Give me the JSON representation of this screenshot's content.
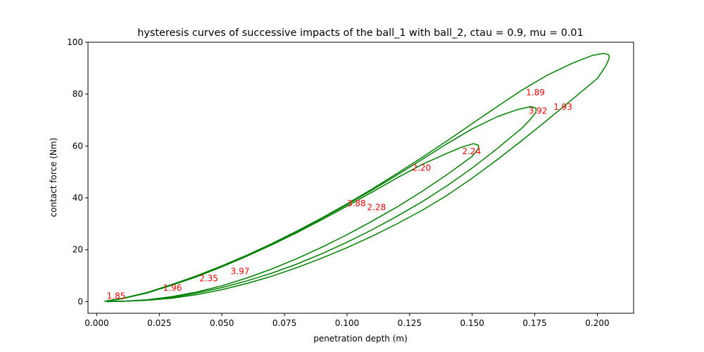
{
  "chart_data": {
    "type": "line",
    "title": "hysteresis curves of successive impacts of the ball_1 with ball_2, ctau = 0.9, mu = 0.01",
    "xlabel": "penetration depth (m)",
    "ylabel": "contact force (Nm)",
    "xlim": [
      -0.0035,
      0.2145
    ],
    "ylim": [
      -4.5,
      100
    ],
    "xticks": [
      {
        "value": 0.0,
        "label": "0.000"
      },
      {
        "value": 0.025,
        "label": "0.025"
      },
      {
        "value": 0.05,
        "label": "0.050"
      },
      {
        "value": 0.075,
        "label": "0.075"
      },
      {
        "value": 0.1,
        "label": "0.100"
      },
      {
        "value": 0.125,
        "label": "0.125"
      },
      {
        "value": 0.15,
        "label": "0.150"
      },
      {
        "value": 0.175,
        "label": "0.175"
      },
      {
        "value": 0.2,
        "label": "0.200"
      }
    ],
    "yticks": [
      {
        "value": 0,
        "label": "0"
      },
      {
        "value": 20,
        "label": "20"
      },
      {
        "value": 40,
        "label": "40"
      },
      {
        "value": 60,
        "label": "60"
      },
      {
        "value": 80,
        "label": "80"
      },
      {
        "value": 100,
        "label": "100"
      }
    ],
    "grid": false,
    "line_color": "#008000",
    "annotation_color": "#ff0000",
    "series": [
      {
        "loading": [
          [
            0.003,
            0.1
          ],
          [
            0.01,
            1.2
          ],
          [
            0.02,
            3.5
          ],
          [
            0.03,
            6.6
          ],
          [
            0.04,
            10.0
          ],
          [
            0.05,
            13.8
          ],
          [
            0.06,
            17.9
          ],
          [
            0.07,
            22.4
          ],
          [
            0.08,
            27.2
          ],
          [
            0.09,
            32.3
          ],
          [
            0.1,
            37.7
          ],
          [
            0.11,
            43.4
          ],
          [
            0.12,
            49.4
          ],
          [
            0.13,
            55.6
          ],
          [
            0.14,
            62.0
          ],
          [
            0.15,
            68.6
          ],
          [
            0.16,
            75.2
          ],
          [
            0.17,
            81.6
          ],
          [
            0.18,
            87.3
          ],
          [
            0.19,
            91.9
          ],
          [
            0.198,
            94.9
          ],
          [
            0.2025,
            95.7
          ],
          [
            0.2045,
            95.2
          ]
        ],
        "unloading": [
          [
            0.2048,
            94.0
          ],
          [
            0.2035,
            91.0
          ],
          [
            0.2,
            86.0
          ],
          [
            0.19,
            78.0
          ],
          [
            0.18,
            70.0
          ],
          [
            0.17,
            62.2
          ],
          [
            0.16,
            54.7
          ],
          [
            0.15,
            47.6
          ],
          [
            0.14,
            41.0
          ],
          [
            0.13,
            35.2
          ],
          [
            0.12,
            30.0
          ],
          [
            0.11,
            25.2
          ],
          [
            0.1,
            20.8
          ],
          [
            0.09,
            16.8
          ],
          [
            0.08,
            13.1
          ],
          [
            0.07,
            9.8
          ],
          [
            0.06,
            7.0
          ],
          [
            0.05,
            4.6
          ],
          [
            0.04,
            2.7
          ],
          [
            0.03,
            1.3
          ],
          [
            0.02,
            0.5
          ],
          [
            0.01,
            0.1
          ],
          [
            0.004,
            0.0
          ]
        ]
      },
      {
        "loading": [
          [
            0.004,
            0.1
          ],
          [
            0.01,
            1.1
          ],
          [
            0.02,
            3.4
          ],
          [
            0.03,
            6.4
          ],
          [
            0.04,
            9.8
          ],
          [
            0.05,
            13.6
          ],
          [
            0.06,
            17.7
          ],
          [
            0.07,
            22.2
          ],
          [
            0.08,
            27.0
          ],
          [
            0.09,
            32.1
          ],
          [
            0.1,
            37.4
          ],
          [
            0.11,
            43.0
          ],
          [
            0.12,
            48.8
          ],
          [
            0.13,
            54.8
          ],
          [
            0.14,
            60.9
          ],
          [
            0.15,
            66.6
          ],
          [
            0.16,
            71.3
          ],
          [
            0.168,
            74.0
          ],
          [
            0.1735,
            75.2
          ],
          [
            0.1755,
            74.6
          ]
        ],
        "unloading": [
          [
            0.1755,
            73.0
          ],
          [
            0.173,
            70.0
          ],
          [
            0.17,
            67.0
          ],
          [
            0.16,
            59.0
          ],
          [
            0.15,
            51.5
          ],
          [
            0.14,
            44.7
          ],
          [
            0.13,
            38.5
          ],
          [
            0.12,
            32.9
          ],
          [
            0.11,
            27.7
          ],
          [
            0.1,
            22.9
          ],
          [
            0.09,
            18.5
          ],
          [
            0.08,
            14.5
          ],
          [
            0.07,
            11.0
          ],
          [
            0.06,
            8.0
          ],
          [
            0.05,
            5.4
          ],
          [
            0.04,
            3.3
          ],
          [
            0.03,
            1.6
          ],
          [
            0.02,
            0.6
          ],
          [
            0.01,
            0.1
          ],
          [
            0.004,
            0.0
          ]
        ]
      },
      {
        "loading": [
          [
            0.004,
            0.1
          ],
          [
            0.01,
            1.1
          ],
          [
            0.02,
            3.3
          ],
          [
            0.03,
            6.3
          ],
          [
            0.04,
            9.6
          ],
          [
            0.05,
            13.4
          ],
          [
            0.06,
            17.5
          ],
          [
            0.07,
            21.9
          ],
          [
            0.08,
            26.6
          ],
          [
            0.09,
            31.6
          ],
          [
            0.1,
            36.8
          ],
          [
            0.11,
            42.2
          ],
          [
            0.12,
            47.7
          ],
          [
            0.13,
            52.9
          ],
          [
            0.14,
            57.2
          ],
          [
            0.146,
            59.6
          ],
          [
            0.1505,
            60.9
          ],
          [
            0.1525,
            60.3
          ]
        ],
        "unloading": [
          [
            0.1525,
            59.0
          ],
          [
            0.15,
            56.0
          ],
          [
            0.14,
            49.0
          ],
          [
            0.13,
            42.5
          ],
          [
            0.12,
            36.5
          ],
          [
            0.11,
            31.0
          ],
          [
            0.1,
            25.8
          ],
          [
            0.09,
            21.0
          ],
          [
            0.08,
            16.6
          ],
          [
            0.07,
            12.6
          ],
          [
            0.06,
            9.1
          ],
          [
            0.05,
            6.1
          ],
          [
            0.04,
            3.7
          ],
          [
            0.03,
            1.9
          ],
          [
            0.02,
            0.7
          ],
          [
            0.01,
            0.1
          ],
          [
            0.004,
            0.0
          ]
        ]
      }
    ],
    "annotations": [
      {
        "text": "1.85",
        "x": 0.004,
        "y": 1.0
      },
      {
        "text": "1.96",
        "x": 0.0265,
        "y": 4.2
      },
      {
        "text": "2.35",
        "x": 0.041,
        "y": 7.9
      },
      {
        "text": "3.97",
        "x": 0.0535,
        "y": 10.6
      },
      {
        "text": "3.88",
        "x": 0.1,
        "y": 36.8
      },
      {
        "text": "2.28",
        "x": 0.108,
        "y": 35.2
      },
      {
        "text": "2.20",
        "x": 0.126,
        "y": 50.5
      },
      {
        "text": "2.24",
        "x": 0.146,
        "y": 56.9
      },
      {
        "text": "1.89",
        "x": 0.1715,
        "y": 79.5
      },
      {
        "text": "3.92",
        "x": 0.1725,
        "y": 72.4
      },
      {
        "text": "1.93",
        "x": 0.1825,
        "y": 73.9
      }
    ]
  }
}
